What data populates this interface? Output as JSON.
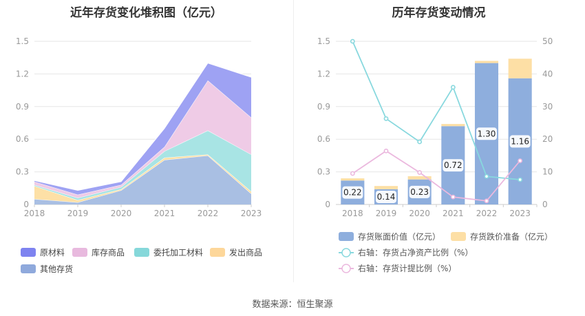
{
  "titles": {
    "left": "近年存货变化堆积图（亿元）",
    "right": "历年存货变动情况"
  },
  "footer": "数据来源：恒生聚源",
  "chart_data": [
    {
      "type": "area",
      "stacked": true,
      "title": "近年存货变化堆积图（亿元）",
      "categories": [
        "2018",
        "2019",
        "2020",
        "2021",
        "2022",
        "2023"
      ],
      "ylim": [
        0,
        1.5
      ],
      "yticks": [
        "0",
        "0.3",
        "0.6",
        "0.9",
        "1.2",
        "1.5"
      ],
      "grid": true,
      "legend_position": "bottom",
      "series": [
        {
          "name": "其他存货",
          "color": "#a9bfe3",
          "values": [
            0.05,
            0.02,
            0.13,
            0.41,
            0.45,
            0.1
          ]
        },
        {
          "name": "发出商品",
          "color": "#fde0a6",
          "values": [
            0.12,
            0.02,
            0.01,
            0.02,
            0.01,
            0.02
          ]
        },
        {
          "name": "委托加工材料",
          "color": "#a8e4e4",
          "values": [
            0.01,
            0.02,
            0.02,
            0.06,
            0.22,
            0.34
          ]
        },
        {
          "name": "库存商品",
          "color": "#efcbe6",
          "values": [
            0.03,
            0.03,
            0.02,
            0.04,
            0.46,
            0.34
          ]
        },
        {
          "name": "原材料",
          "color": "#9ea2f3",
          "values": [
            0.01,
            0.04,
            0.03,
            0.17,
            0.16,
            0.37
          ]
        }
      ],
      "legend": [
        {
          "name": "原材料",
          "color": "#7e83f0"
        },
        {
          "name": "库存商品",
          "color": "#e8b9de"
        },
        {
          "name": "委托加工材料",
          "color": "#86d8da"
        },
        {
          "name": "发出商品",
          "color": "#fdd79a"
        },
        {
          "name": "其他存货",
          "color": "#8fa9dc"
        }
      ]
    },
    {
      "type": "bar",
      "stacked": true,
      "title": "历年存货变动情况",
      "categories": [
        "2018",
        "2019",
        "2020",
        "2021",
        "2022",
        "2023"
      ],
      "ylim": [
        0,
        1.5
      ],
      "yticks": [
        "0",
        "0.3",
        "0.6",
        "0.9",
        "1.2",
        "1.5"
      ],
      "y2lim": [
        0,
        50
      ],
      "y2ticks": [
        "0",
        "10",
        "20",
        "30",
        "40",
        "50"
      ],
      "grid": true,
      "legend_position": "bottom",
      "bar_series": [
        {
          "name": "存货账面价值（亿元）",
          "color": "#8eaedd",
          "values": [
            0.22,
            0.14,
            0.23,
            0.72,
            1.3,
            1.16
          ],
          "labels": [
            "0.22",
            "0.14",
            "0.23",
            "0.72",
            "1.30",
            "1.16"
          ]
        },
        {
          "name": "存货跌价准备（亿元）",
          "color": "#fddfa5",
          "values": [
            0.02,
            0.03,
            0.03,
            0.02,
            0.02,
            0.18
          ]
        }
      ],
      "line_series": [
        {
          "name": "右轴：存货占净资产比例（%）",
          "color": "#88d8de",
          "axis": "right",
          "values": [
            50.0,
            26.3,
            19.2,
            35.9,
            8.6,
            7.6
          ]
        },
        {
          "name": "右轴：存货计提比例（%）",
          "color": "#ebb8de",
          "axis": "right",
          "values": [
            9.5,
            16.4,
            9.8,
            2.3,
            1.1,
            13.4
          ]
        }
      ]
    }
  ]
}
